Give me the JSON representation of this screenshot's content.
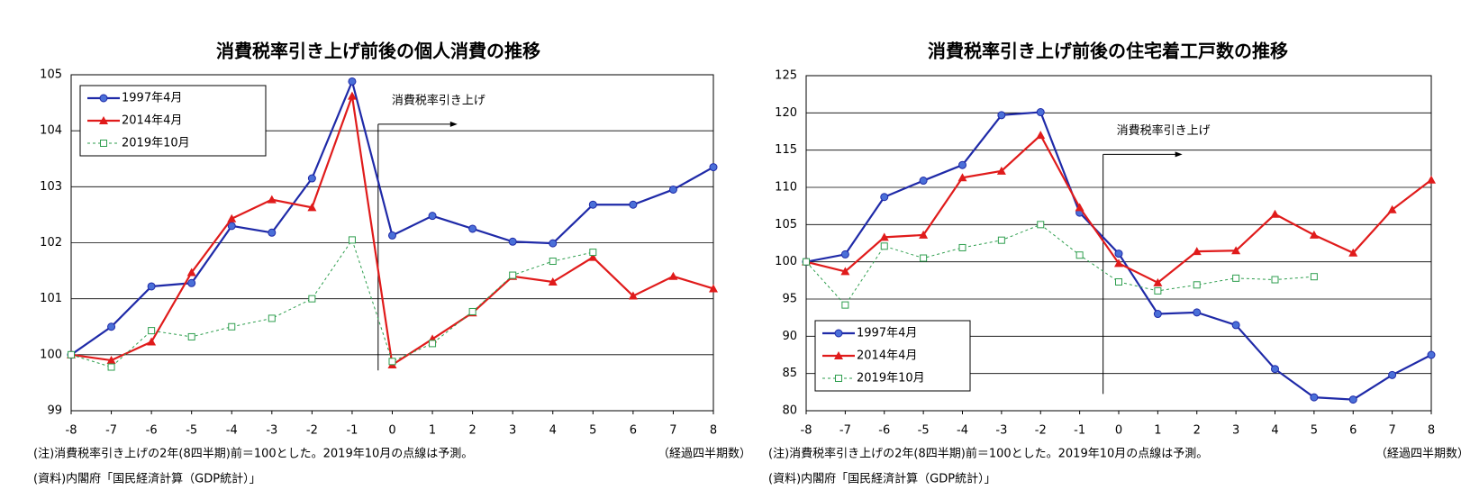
{
  "chart_data": [
    {
      "type": "line",
      "title": "消費税率引き上げ前後の個人消費の推移",
      "x": [
        -8,
        -7,
        -6,
        -5,
        -4,
        -3,
        -2,
        -1,
        0,
        1,
        2,
        3,
        4,
        5,
        6,
        7,
        8
      ],
      "xlim": [
        -8,
        8
      ],
      "xticks": [
        -8,
        -7,
        -6,
        -5,
        -4,
        -3,
        -2,
        -1,
        0,
        1,
        2,
        3,
        4,
        5,
        6,
        7,
        8
      ],
      "ylim": [
        99,
        105
      ],
      "yticks": [
        99,
        100,
        101,
        102,
        103,
        104,
        105
      ],
      "grid": true,
      "legend": "upper left",
      "annotation": "消費税率引き上げ",
      "x_label": "（経過四半期数）",
      "notes": [
        "(注)消費税率引き上げの2年(8四半期)前＝100とした。2019年10月の点線は予測。",
        "(資料)内閣府「国民経済計算（GDP統計）」"
      ],
      "series": [
        {
          "name": "1997年4月",
          "color": "#1f2aa8",
          "marker": "circle",
          "values": [
            100,
            100.5,
            101.22,
            101.28,
            102.3,
            102.18,
            103.15,
            104.88,
            102.13,
            102.48,
            102.25,
            102.02,
            101.99,
            102.68,
            102.68,
            102.95,
            103.35
          ]
        },
        {
          "name": "2014年4月",
          "color": "#e01b1b",
          "marker": "triangle",
          "values": [
            100,
            99.9,
            100.23,
            101.47,
            102.43,
            102.77,
            102.63,
            104.62,
            99.82,
            100.28,
            100.75,
            101.4,
            101.3,
            101.74,
            101.05,
            101.4,
            101.18
          ]
        },
        {
          "name": "2019年10月",
          "color": "#2e9e4e",
          "marker": "square",
          "dashed": true,
          "values": [
            100,
            99.78,
            100.43,
            100.32,
            100.5,
            100.65,
            101.0,
            102.05,
            99.88,
            100.2,
            100.77,
            101.42,
            101.67,
            101.83,
            null,
            null,
            null
          ]
        }
      ]
    },
    {
      "type": "line",
      "title": "消費税率引き上げ前後の住宅着工戸数の推移",
      "x": [
        -8,
        -7,
        -6,
        -5,
        -4,
        -3,
        -2,
        -1,
        0,
        1,
        2,
        3,
        4,
        5,
        6,
        7,
        8
      ],
      "xlim": [
        -8,
        8
      ],
      "xticks": [
        -8,
        -7,
        -6,
        -5,
        -4,
        -3,
        -2,
        -1,
        0,
        1,
        2,
        3,
        4,
        5,
        6,
        7,
        8
      ],
      "ylim": [
        80,
        125
      ],
      "yticks": [
        80,
        85,
        90,
        95,
        100,
        105,
        110,
        115,
        120,
        125
      ],
      "grid": true,
      "legend": "lower left",
      "annotation": "消費税率引き上げ",
      "x_label": "（経過四半期数）",
      "notes": [
        "(注)消費税率引き上げの2年(8四半期)前＝100とした。2019年10月の点線は予測。",
        "(資料)内閣府「国民経済計算（GDP統計）」"
      ],
      "series": [
        {
          "name": "1997年4月",
          "color": "#1f2aa8",
          "marker": "circle",
          "values": [
            100,
            101,
            108.7,
            110.9,
            113,
            119.7,
            120.1,
            106.6,
            101.1,
            93,
            93.2,
            91.5,
            85.6,
            81.8,
            81.5,
            84.8,
            87.5
          ]
        },
        {
          "name": "2014年4月",
          "color": "#e01b1b",
          "marker": "triangle",
          "values": [
            100,
            98.7,
            103.3,
            103.6,
            111.3,
            112.2,
            117,
            107.3,
            99.8,
            97.2,
            101.4,
            101.5,
            106.4,
            103.6,
            101.2,
            107,
            111
          ]
        },
        {
          "name": "2019年10月",
          "color": "#2e9e4e",
          "marker": "square",
          "dashed": true,
          "values": [
            100,
            94.2,
            102.1,
            100.5,
            101.9,
            102.9,
            105,
            100.9,
            97.3,
            96.1,
            96.9,
            97.8,
            97.6,
            98.0,
            null,
            null,
            null
          ]
        }
      ]
    }
  ]
}
